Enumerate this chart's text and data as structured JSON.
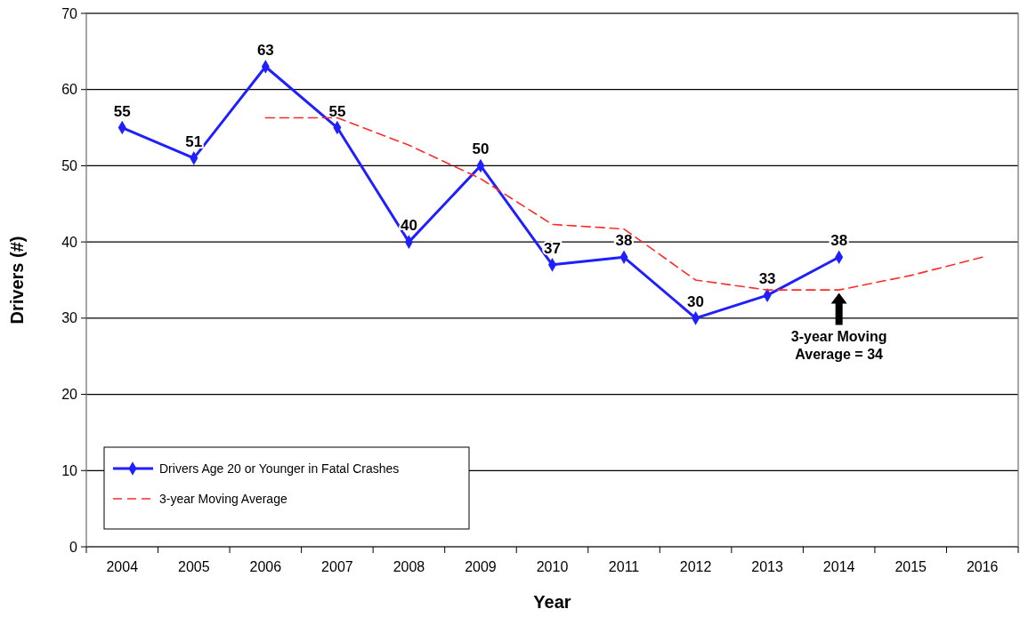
{
  "chart_data": {
    "type": "line",
    "xlabel": "Year",
    "ylabel": "Drivers (#)",
    "categories": [
      "2004",
      "2005",
      "2006",
      "2007",
      "2008",
      "2009",
      "2010",
      "2011",
      "2012",
      "2013",
      "2014",
      "2015",
      "2016"
    ],
    "ylim": [
      0,
      70
    ],
    "yticks": [
      0,
      10,
      20,
      30,
      40,
      50,
      60,
      70
    ],
    "grid": "y",
    "legend": "bottom left",
    "series": [
      {
        "name": "Drivers Age 20 or Younger in Fatal Crashes",
        "color": "#1f1fff",
        "marker": "diamond",
        "line_style": "solid",
        "values": [
          55,
          51,
          63,
          55,
          40,
          50,
          37,
          38,
          30,
          33,
          38,
          null,
          null
        ],
        "value_labels": [
          "55",
          "51",
          "63",
          "55",
          "40",
          "50",
          "37",
          "38",
          "30",
          "33",
          "38",
          null,
          null
        ]
      },
      {
        "name": "3-year Moving Average",
        "color": "#ff2a2a",
        "marker": "none",
        "line_style": "dashed",
        "values": [
          null,
          null,
          56.3,
          56.3,
          52.7,
          48.3,
          42.3,
          41.7,
          35,
          33.7,
          33.7,
          35.6,
          38
        ]
      }
    ],
    "annotations": [
      {
        "text": "3-year Moving Average = 34",
        "x": "2014",
        "y": 34
      }
    ]
  }
}
